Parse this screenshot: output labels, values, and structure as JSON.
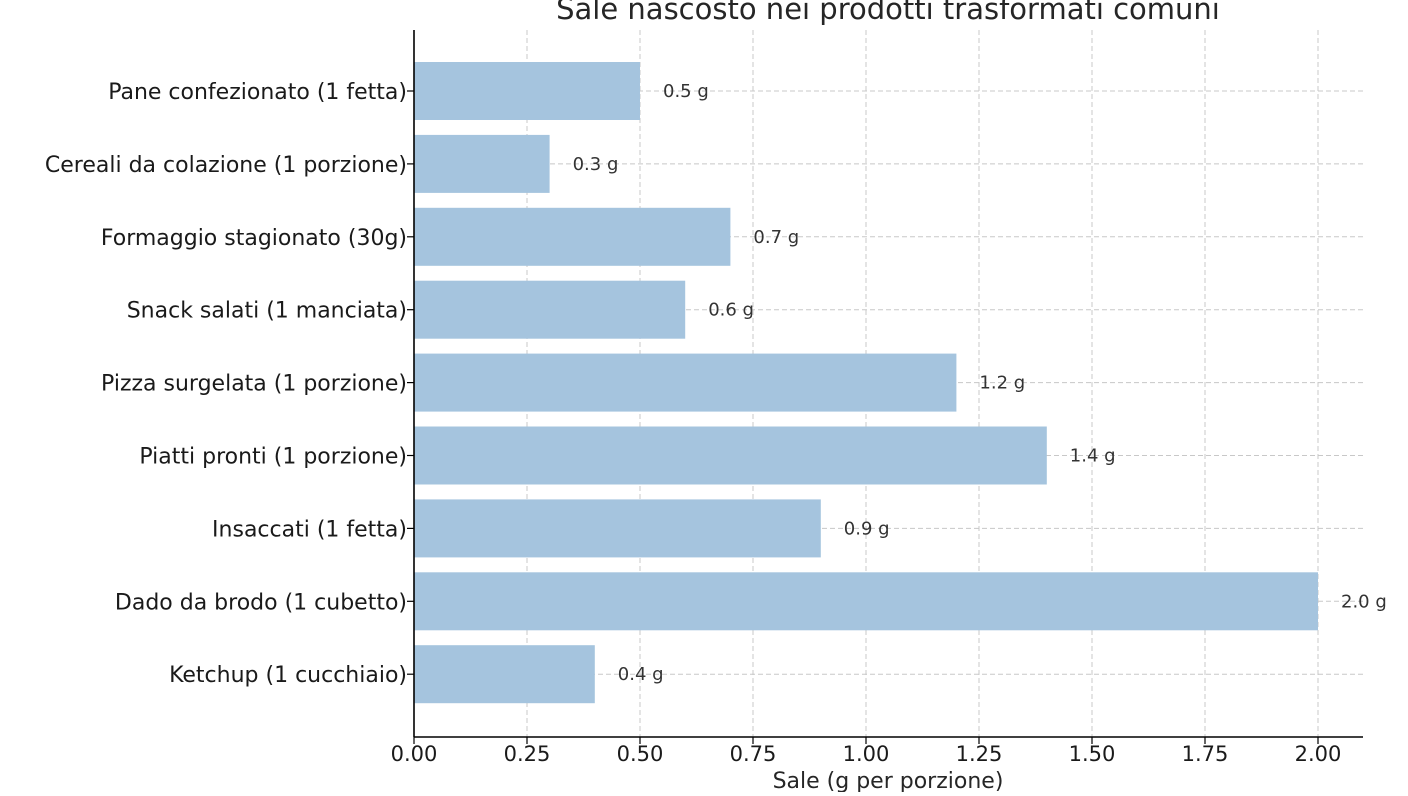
{
  "chart_data": {
    "type": "bar",
    "orientation": "horizontal",
    "title": "Sale nascosto nei prodotti trasformati comuni",
    "xlabel": "Sale (g per porzione)",
    "ylabel": "",
    "xlim": [
      0,
      2.1
    ],
    "x_ticks": [
      "0.00",
      "0.25",
      "0.50",
      "0.75",
      "1.00",
      "1.25",
      "1.50",
      "1.75",
      "2.00"
    ],
    "grid": true,
    "bar_color": "#a5c4de",
    "categories": [
      "Pane confezionato (1 fetta)",
      "Cereali da colazione (1 porzione)",
      "Formaggio stagionato (30g)",
      "Snack salati (1 manciata)",
      "Pizza surgelata (1 porzione)",
      "Piatti pronti (1 porzione)",
      "Insaccati (1 fetta)",
      "Dado da brodo (1 cubetto)",
      "Ketchup (1 cucchiaio)"
    ],
    "values": [
      0.5,
      0.3,
      0.7,
      0.6,
      1.2,
      1.4,
      0.9,
      2.0,
      0.4
    ],
    "value_labels": [
      "0.5 g",
      "0.3 g",
      "0.7 g",
      "0.6 g",
      "1.2 g",
      "1.4 g",
      "0.9 g",
      "2.0 g",
      "0.4 g"
    ]
  }
}
